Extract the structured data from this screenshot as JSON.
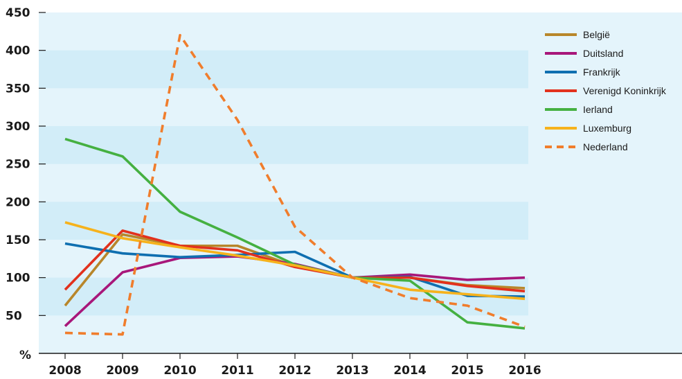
{
  "chart_data": {
    "type": "line",
    "y_unit_label": "%",
    "ylim": [
      0,
      450
    ],
    "yticks": [
      50,
      100,
      150,
      200,
      250,
      300,
      350,
      400,
      450
    ],
    "x": [
      "2008",
      "2009",
      "2010",
      "2011",
      "2012",
      "2013",
      "2014",
      "2015",
      "2016"
    ],
    "grid": "horizontal bands",
    "legend_position": "top-right",
    "colors": {
      "band_light": "#e4f4fb",
      "band_dark": "#d2edf8"
    },
    "series": [
      {
        "name": "België",
        "color": "#b8862a",
        "dash": false,
        "values": [
          63,
          157,
          142,
          142,
          115,
          100,
          100,
          90,
          86
        ]
      },
      {
        "name": "Duitsland",
        "color": "#a8177a",
        "dash": false,
        "values": [
          36,
          107,
          126,
          128,
          118,
          100,
          104,
          97,
          100
        ]
      },
      {
        "name": "Frankrijk",
        "color": "#0f6fb0",
        "dash": false,
        "values": [
          145,
          132,
          127,
          130,
          134,
          100,
          101,
          76,
          75
        ]
      },
      {
        "name": "Verenigd Koninkrijk",
        "color": "#e2311d",
        "dash": false,
        "values": [
          84,
          162,
          142,
          136,
          114,
          100,
          100,
          89,
          82
        ]
      },
      {
        "name": "Ierland",
        "color": "#45b041",
        "dash": false,
        "values": [
          283,
          260,
          187,
          153,
          117,
          100,
          96,
          41,
          33
        ]
      },
      {
        "name": "Luxemburg",
        "color": "#f6b21c",
        "dash": false,
        "values": [
          173,
          152,
          140,
          129,
          116,
          100,
          84,
          78,
          72
        ]
      },
      {
        "name": "Nederland",
        "color": "#f07d2c",
        "dash": true,
        "values": [
          27,
          25,
          420,
          308,
          167,
          100,
          73,
          63,
          35
        ]
      }
    ]
  }
}
